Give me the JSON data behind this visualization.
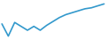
{
  "y_values": [
    55,
    30,
    58,
    50,
    42,
    50,
    42,
    52,
    60,
    68,
    74,
    78,
    82,
    86,
    88,
    92,
    96
  ],
  "line_color": "#3399cc",
  "linewidth": 1.2,
  "background_color": "#ffffff"
}
